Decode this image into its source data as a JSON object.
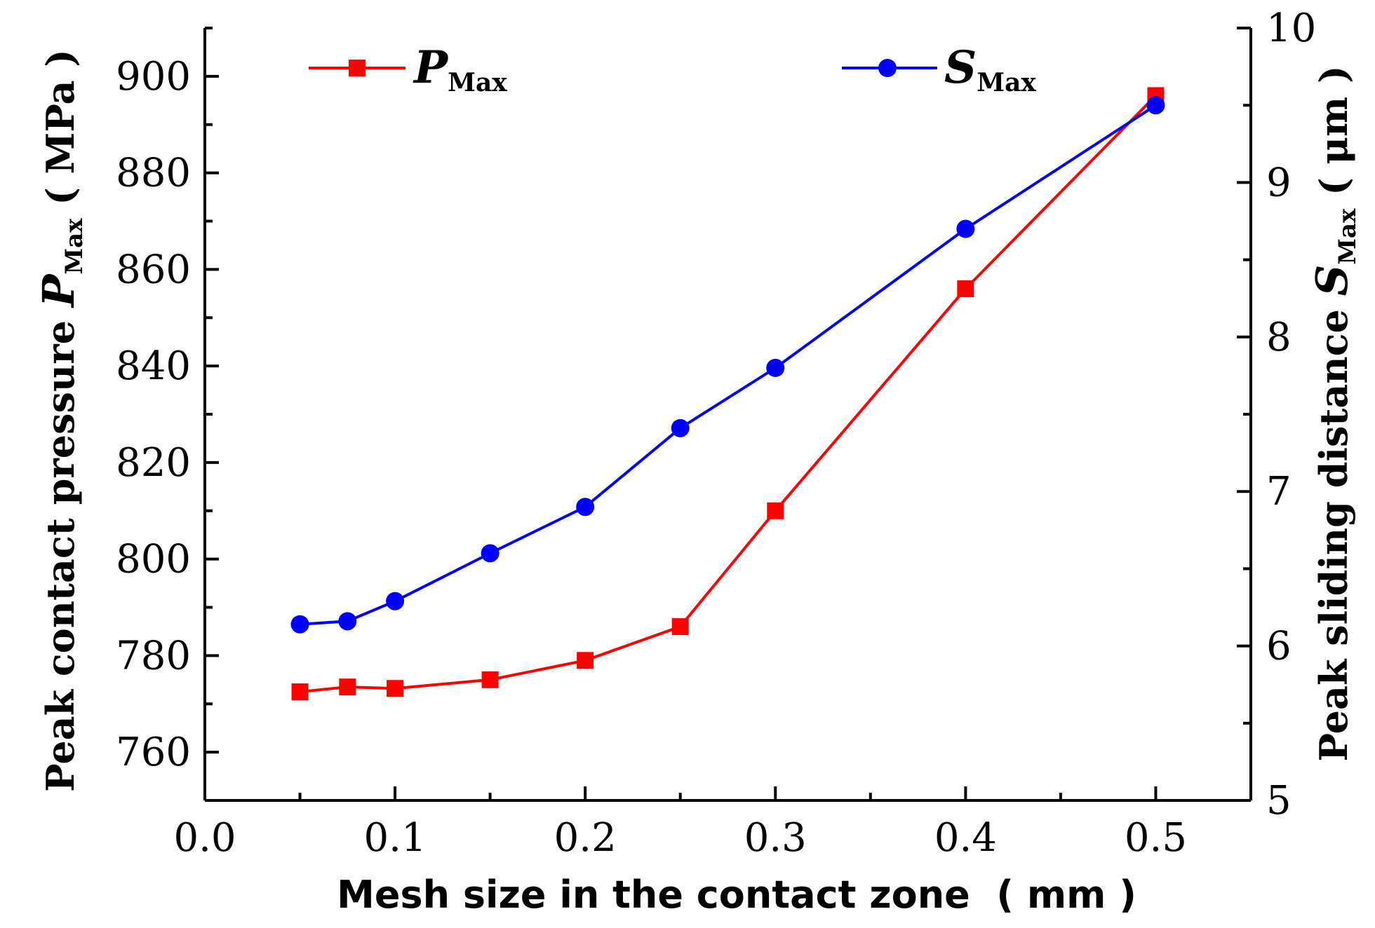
{
  "chart_data": {
    "type": "line",
    "x": [
      0.05,
      0.075,
      0.1,
      0.15,
      0.2,
      0.25,
      0.3,
      0.4,
      0.5
    ],
    "xlabel": "Mesh size in the contact zone  ( mm )",
    "xlim": [
      0.0,
      0.55
    ],
    "xticks": [
      "0.0",
      "0.1",
      "0.2",
      "0.3",
      "0.4",
      "0.5"
    ],
    "left_axis": {
      "label_main": "Peak contact pressure ",
      "label_symbol": "P",
      "label_sub": "Max",
      "label_unit": " ( MPa )",
      "ylim": [
        750,
        910
      ],
      "ticks": [
        "760",
        "780",
        "800",
        "820",
        "840",
        "860",
        "880",
        "900"
      ]
    },
    "right_axis": {
      "label_main": "Peak sliding distance ",
      "label_symbol": "S",
      "label_sub": "Max",
      "label_unit": " ( μm )",
      "ylim": [
        5,
        10
      ],
      "ticks": [
        "5",
        "6",
        "7",
        "8",
        "9",
        "10"
      ]
    },
    "series": [
      {
        "name": "P",
        "name_sub": "Max",
        "axis": "left",
        "color": "#ff0000",
        "marker": "square",
        "values": [
          772.5,
          773.5,
          773.2,
          775.0,
          779.0,
          786.0,
          810.0,
          856.0,
          896.0
        ]
      },
      {
        "name": "S",
        "name_sub": "Max",
        "axis": "right",
        "color": "#0000ff",
        "marker": "circle",
        "values": [
          6.14,
          6.16,
          6.29,
          6.6,
          6.9,
          7.41,
          7.8,
          8.7,
          9.5
        ]
      }
    ]
  }
}
